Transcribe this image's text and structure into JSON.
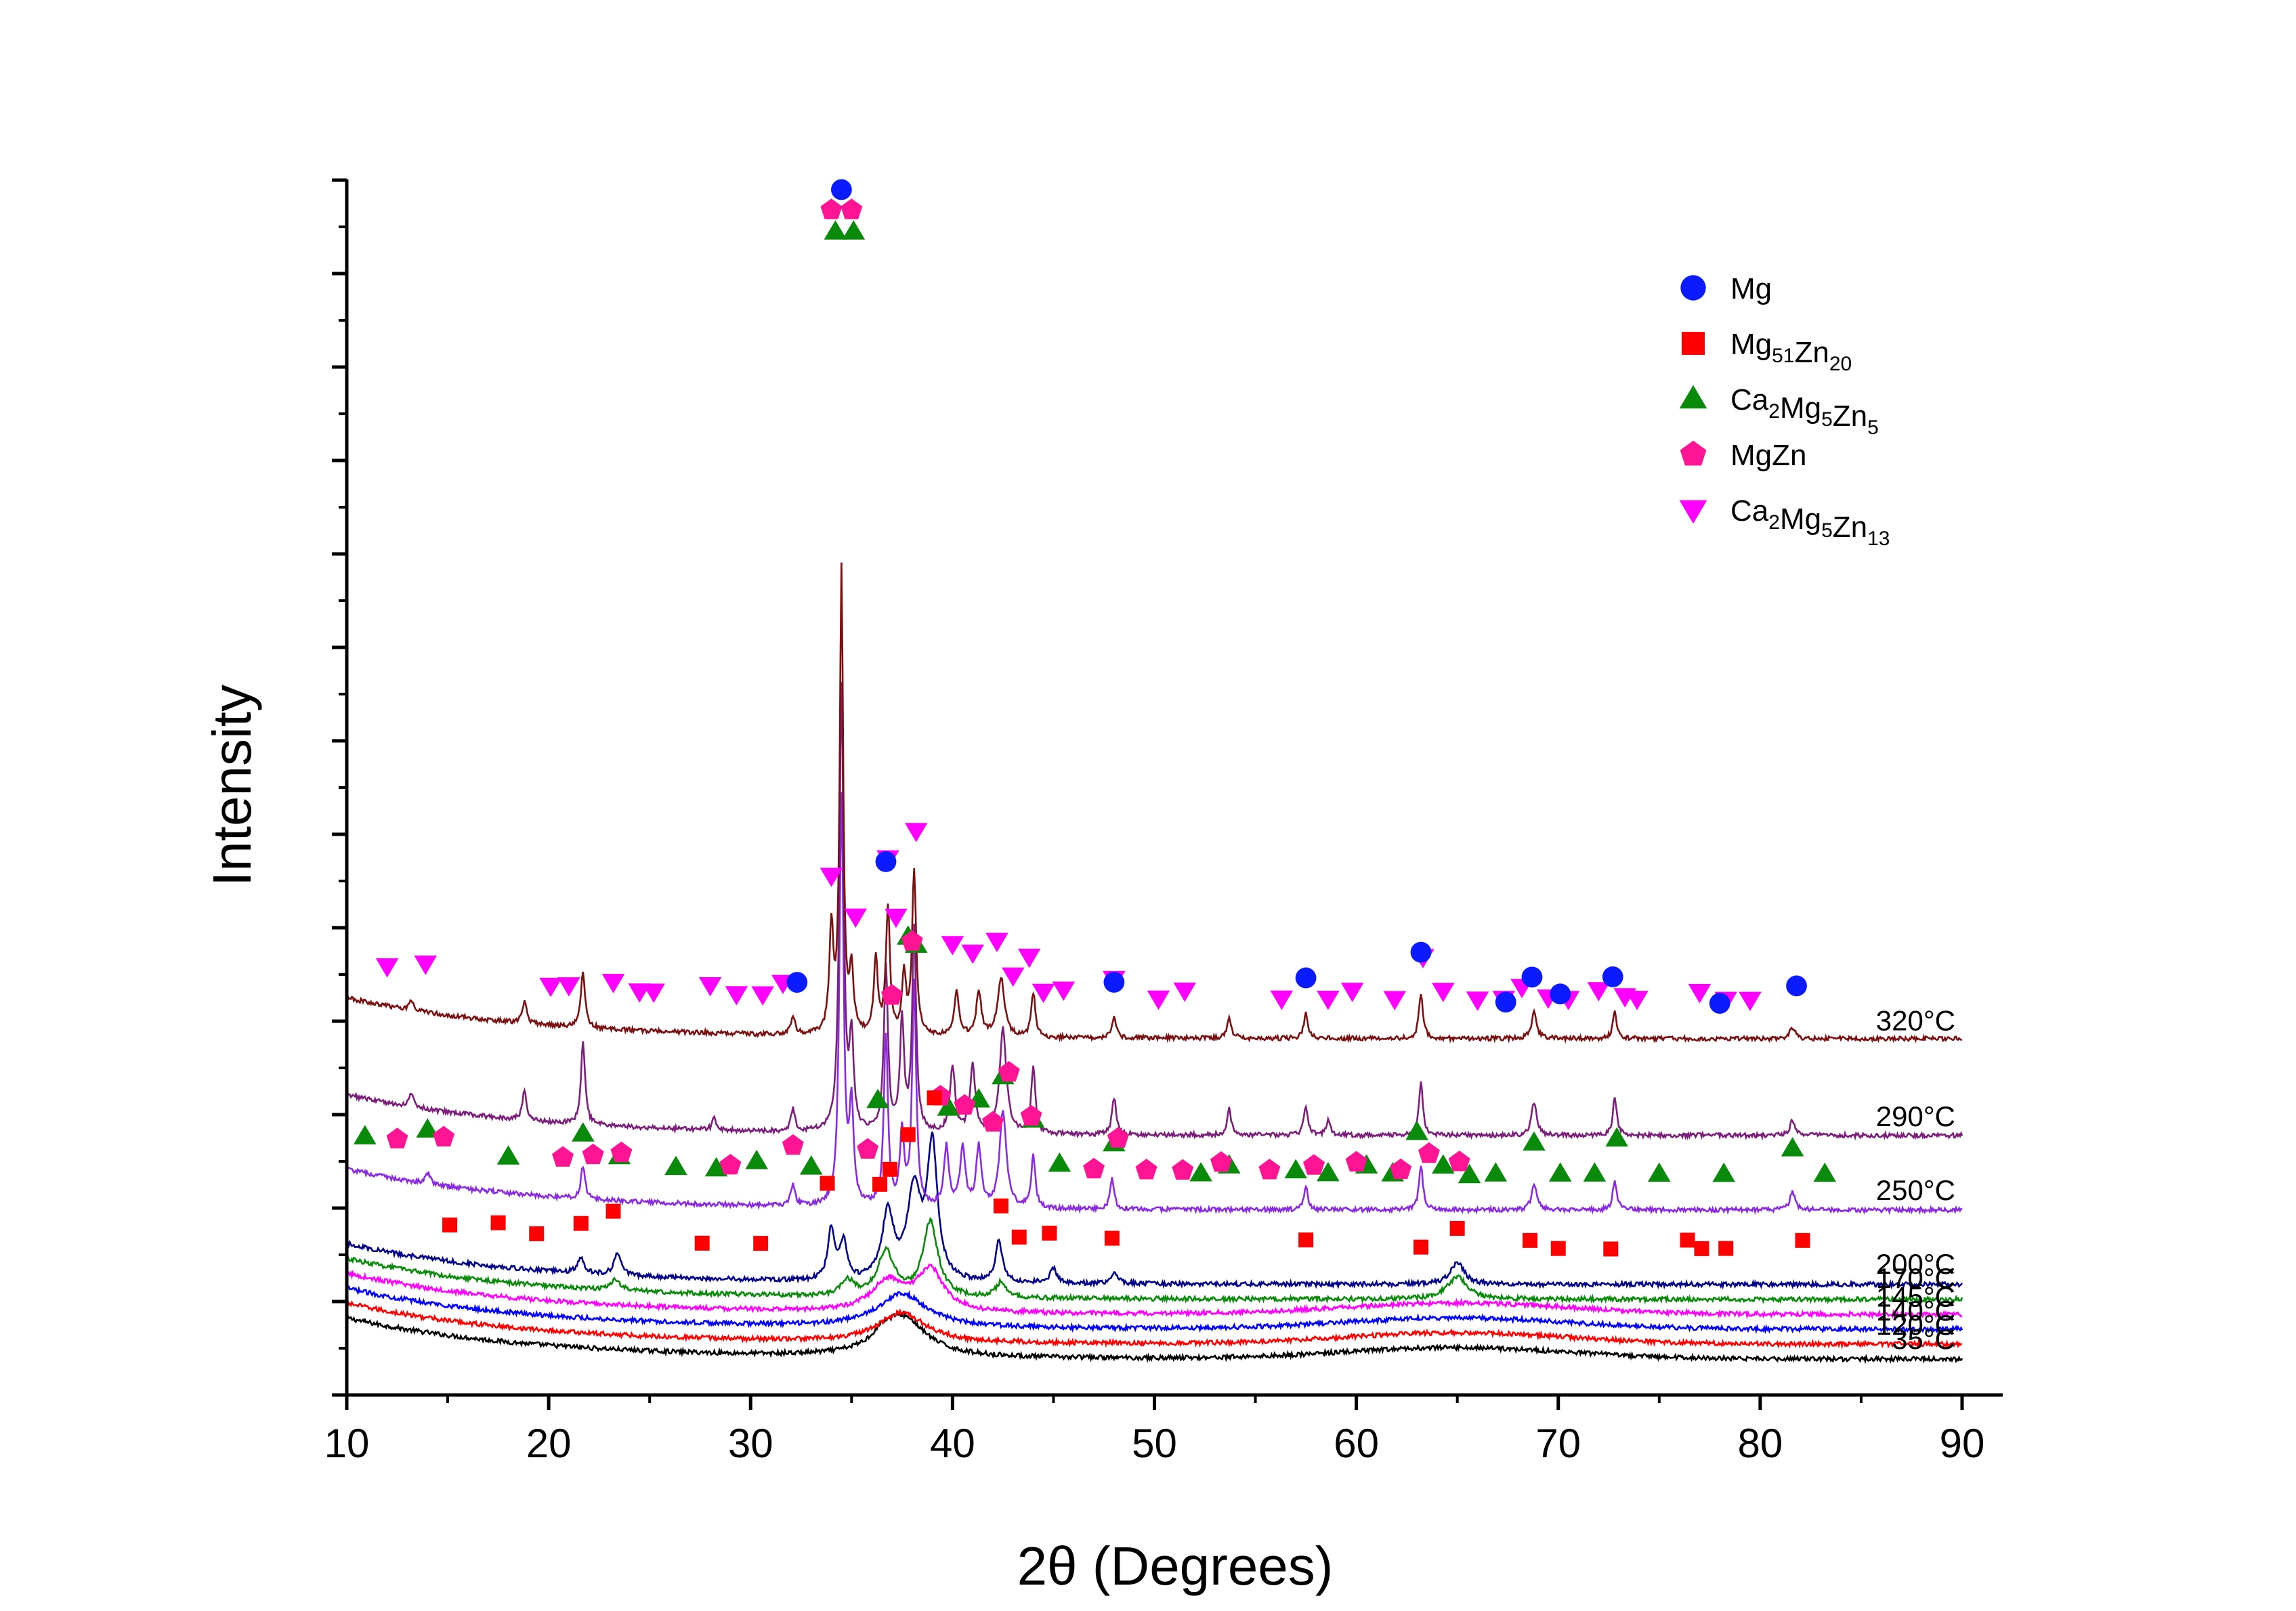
{
  "chart_data": {
    "type": "line",
    "title": "",
    "xlabel": "2θ (Degrees)",
    "ylabel": "Intensity",
    "xlim": [
      10,
      90
    ],
    "xticks": [
      10,
      20,
      30,
      40,
      50,
      60,
      70,
      80,
      90
    ],
    "yticks_labeled": false,
    "grid": false,
    "legend_position": "top-right",
    "legend": [
      {
        "name": "Mg",
        "marker": "circle",
        "color": "#0a1cff"
      },
      {
        "name": "Mg51Zn20",
        "base": "Mg",
        "sub1": "51",
        "mid": "Zn",
        "sub2": "20",
        "marker": "square",
        "color": "#ff0000"
      },
      {
        "name": "Ca2Mg5Zn5",
        "base": "Ca",
        "sub1": "2",
        "mid": "Mg",
        "sub2": "5",
        "tail": "Zn",
        "sub3": "5",
        "marker": "triangle-up",
        "color": "#0a8a0a"
      },
      {
        "name": "MgZn",
        "marker": "pentagon",
        "color": "#ff1493"
      },
      {
        "name": "Ca2Mg5Zn13",
        "base": "Ca",
        "sub1": "2",
        "mid": "Mg",
        "sub2": "5",
        "tail": "Zn",
        "sub3": "13",
        "marker": "triangle-down",
        "color": "#ff00ff"
      }
    ],
    "series": [
      {
        "name": "35°C",
        "color": "#000000",
        "offset": 0.0,
        "peaks": [
          [
            37.5,
            0.55,
            1.4
          ],
          [
            36.5,
            0.1,
            0.5
          ]
        ]
      },
      {
        "name": "120°C",
        "color": "#ff0000",
        "offset": 0.2,
        "peaks": [
          [
            37.5,
            0.4,
            1.4
          ]
        ]
      },
      {
        "name": "140°C",
        "color": "#0000ff",
        "offset": 0.4,
        "peaks": [
          [
            37.5,
            0.45,
            1.5
          ]
        ]
      },
      {
        "name": "145°C",
        "color": "#ff00ff",
        "offset": 0.6,
        "peaks": [
          [
            36.8,
            0.4,
            1.0
          ],
          [
            38.9,
            0.55,
            0.8
          ]
        ]
      },
      {
        "name": "170°C",
        "color": "#0a8a0a",
        "offset": 0.8,
        "peaks": [
          [
            23.3,
            0.15,
            0.25
          ],
          [
            34.8,
            0.2,
            0.4
          ],
          [
            36.7,
            0.6,
            0.5
          ],
          [
            38.9,
            1.0,
            0.45
          ],
          [
            42.4,
            0.2,
            0.3
          ],
          [
            65.0,
            0.3,
            0.6
          ]
        ]
      },
      {
        "name": "200°C",
        "color": "#00008b",
        "offset": 1.0,
        "peaks": [
          [
            21.6,
            0.2,
            0.2
          ],
          [
            23.4,
            0.3,
            0.2
          ],
          [
            34.0,
            0.7,
            0.2
          ],
          [
            34.6,
            0.5,
            0.2
          ],
          [
            36.8,
            0.9,
            0.35
          ],
          [
            38.1,
            1.2,
            0.4
          ],
          [
            39.0,
            1.8,
            0.3
          ],
          [
            42.3,
            0.55,
            0.2
          ],
          [
            45.0,
            0.2,
            0.2
          ],
          [
            48.0,
            0.15,
            0.2
          ],
          [
            65.0,
            0.3,
            0.4
          ]
        ]
      },
      {
        "name": "250°C",
        "color": "#8a2be2",
        "offset": 2.0,
        "peaks": [
          [
            14.0,
            0.15,
            0.15
          ],
          [
            21.7,
            0.45,
            0.12
          ],
          [
            32.1,
            0.3,
            0.12
          ],
          [
            34.5,
            5.5,
            0.12
          ],
          [
            35.0,
            1.3,
            0.12
          ],
          [
            36.7,
            2.3,
            0.12
          ],
          [
            37.5,
            1.0,
            0.12
          ],
          [
            38.1,
            3.0,
            0.12
          ],
          [
            39.7,
            0.8,
            0.15
          ],
          [
            40.5,
            0.8,
            0.15
          ],
          [
            41.3,
            0.8,
            0.15
          ],
          [
            42.5,
            1.3,
            0.2
          ],
          [
            44.0,
            0.7,
            0.12
          ],
          [
            47.9,
            0.4,
            0.12
          ],
          [
            57.5,
            0.3,
            0.12
          ],
          [
            63.2,
            0.6,
            0.12
          ],
          [
            68.8,
            0.35,
            0.15
          ],
          [
            72.8,
            0.4,
            0.12
          ],
          [
            81.6,
            0.25,
            0.15
          ]
        ]
      },
      {
        "name": "290°C",
        "color": "#7b1f7b",
        "offset": 3.0,
        "peaks": [
          [
            13.2,
            0.2,
            0.12
          ],
          [
            18.8,
            0.4,
            0.12
          ],
          [
            21.7,
            1.1,
            0.12
          ],
          [
            28.2,
            0.15,
            0.12
          ],
          [
            32.1,
            0.3,
            0.12
          ],
          [
            34.5,
            6.0,
            0.12
          ],
          [
            35.0,
            1.2,
            0.12
          ],
          [
            36.7,
            2.2,
            0.12
          ],
          [
            37.5,
            1.5,
            0.12
          ],
          [
            38.1,
            2.7,
            0.12
          ],
          [
            40.0,
            0.9,
            0.15
          ],
          [
            41.0,
            0.9,
            0.15
          ],
          [
            42.5,
            1.4,
            0.2
          ],
          [
            44.0,
            0.9,
            0.12
          ],
          [
            48.0,
            0.5,
            0.12
          ],
          [
            53.7,
            0.35,
            0.12
          ],
          [
            57.5,
            0.4,
            0.12
          ],
          [
            58.6,
            0.2,
            0.12
          ],
          [
            63.2,
            0.7,
            0.12
          ],
          [
            68.8,
            0.45,
            0.15
          ],
          [
            72.8,
            0.5,
            0.12
          ],
          [
            81.6,
            0.2,
            0.15
          ]
        ]
      },
      {
        "name": "320°C",
        "color": "#7a1010",
        "offset": 4.3,
        "peaks": [
          [
            13.2,
            0.15,
            0.12
          ],
          [
            18.8,
            0.3,
            0.12
          ],
          [
            21.7,
            0.75,
            0.12
          ],
          [
            32.1,
            0.25,
            0.12
          ],
          [
            34.0,
            1.4,
            0.12
          ],
          [
            34.5,
            6.2,
            0.1
          ],
          [
            35.0,
            0.8,
            0.12
          ],
          [
            36.2,
            1.0,
            0.12
          ],
          [
            36.8,
            1.7,
            0.12
          ],
          [
            37.6,
            0.8,
            0.12
          ],
          [
            38.1,
            2.2,
            0.12
          ],
          [
            40.2,
            0.6,
            0.15
          ],
          [
            41.3,
            0.6,
            0.15
          ],
          [
            42.4,
            0.8,
            0.2
          ],
          [
            44.0,
            0.6,
            0.12
          ],
          [
            48.0,
            0.3,
            0.12
          ],
          [
            53.7,
            0.3,
            0.12
          ],
          [
            57.5,
            0.35,
            0.12
          ],
          [
            63.2,
            0.6,
            0.12
          ],
          [
            68.8,
            0.35,
            0.15
          ],
          [
            72.8,
            0.35,
            0.12
          ],
          [
            81.6,
            0.15,
            0.15
          ]
        ]
      }
    ],
    "markers": [
      {
        "series": "320°C",
        "type": "triangle-down",
        "x": [
          12.0,
          13.9,
          20.1,
          21.0,
          23.2,
          24.5,
          25.2,
          28.0,
          29.3,
          30.6,
          31.6,
          34.0,
          35.2,
          36.8,
          37.2,
          38.2,
          40.0,
          41.0,
          42.2,
          43.0,
          43.8,
          44.5,
          45.5,
          48.0,
          50.2,
          51.5,
          56.3,
          58.6,
          59.8,
          61.9,
          63.3,
          64.3,
          66.0,
          67.3,
          68.2,
          69.5,
          70.5,
          72.0,
          73.3,
          73.9,
          77.0,
          78.3,
          79.5
        ]
      },
      {
        "series": "320°C",
        "type": "circle",
        "x": [
          32.3,
          36.7,
          48.0,
          57.5,
          63.2,
          67.4,
          68.7,
          70.1,
          72.7,
          78.0,
          81.8
        ]
      },
      {
        "series": "250°C",
        "type": "triangle-up",
        "x": [
          10.9,
          14.0,
          18.0,
          21.7,
          23.5,
          26.3,
          28.3,
          30.3,
          33.0,
          36.3,
          37.8,
          38.2,
          39.8,
          41.3,
          42.5,
          44.0,
          45.3,
          48.0,
          52.3,
          53.7,
          57.0,
          58.6,
          60.5,
          61.8,
          63.0,
          64.3,
          65.6,
          66.9,
          68.8,
          70.1,
          71.8,
          72.9,
          75.0,
          78.2,
          81.6,
          83.2
        ]
      },
      {
        "series": "250°C",
        "type": "pentagon",
        "x": [
          12.5,
          14.8,
          20.7,
          22.2,
          23.6,
          29.0,
          32.1,
          35.8,
          37.0,
          38.0,
          39.4,
          40.6,
          42.0,
          42.8,
          43.9,
          47.0,
          48.2,
          49.6,
          51.4,
          53.3,
          55.7,
          57.9,
          60.0,
          62.2,
          63.6,
          65.1
        ]
      },
      {
        "series": "200°C",
        "type": "square",
        "x": [
          15.1,
          17.5,
          19.4,
          21.6,
          23.2,
          27.6,
          30.5,
          33.8,
          36.4,
          36.9,
          37.8,
          39.1,
          42.4,
          43.3,
          44.8,
          47.9,
          57.5,
          63.2,
          65.0,
          68.6,
          70.0,
          72.6,
          76.4,
          77.1,
          78.3,
          82.1
        ]
      },
      {
        "series": "320°C",
        "type": "circle",
        "x": [
          34.5
        ],
        "top": true
      },
      {
        "series": "320°C",
        "type": "pentagon",
        "x": [
          34.0,
          35.0
        ],
        "top": true
      },
      {
        "series": "320°C",
        "type": "triangle-up",
        "x": [
          34.2,
          35.1
        ],
        "top": true
      }
    ]
  }
}
